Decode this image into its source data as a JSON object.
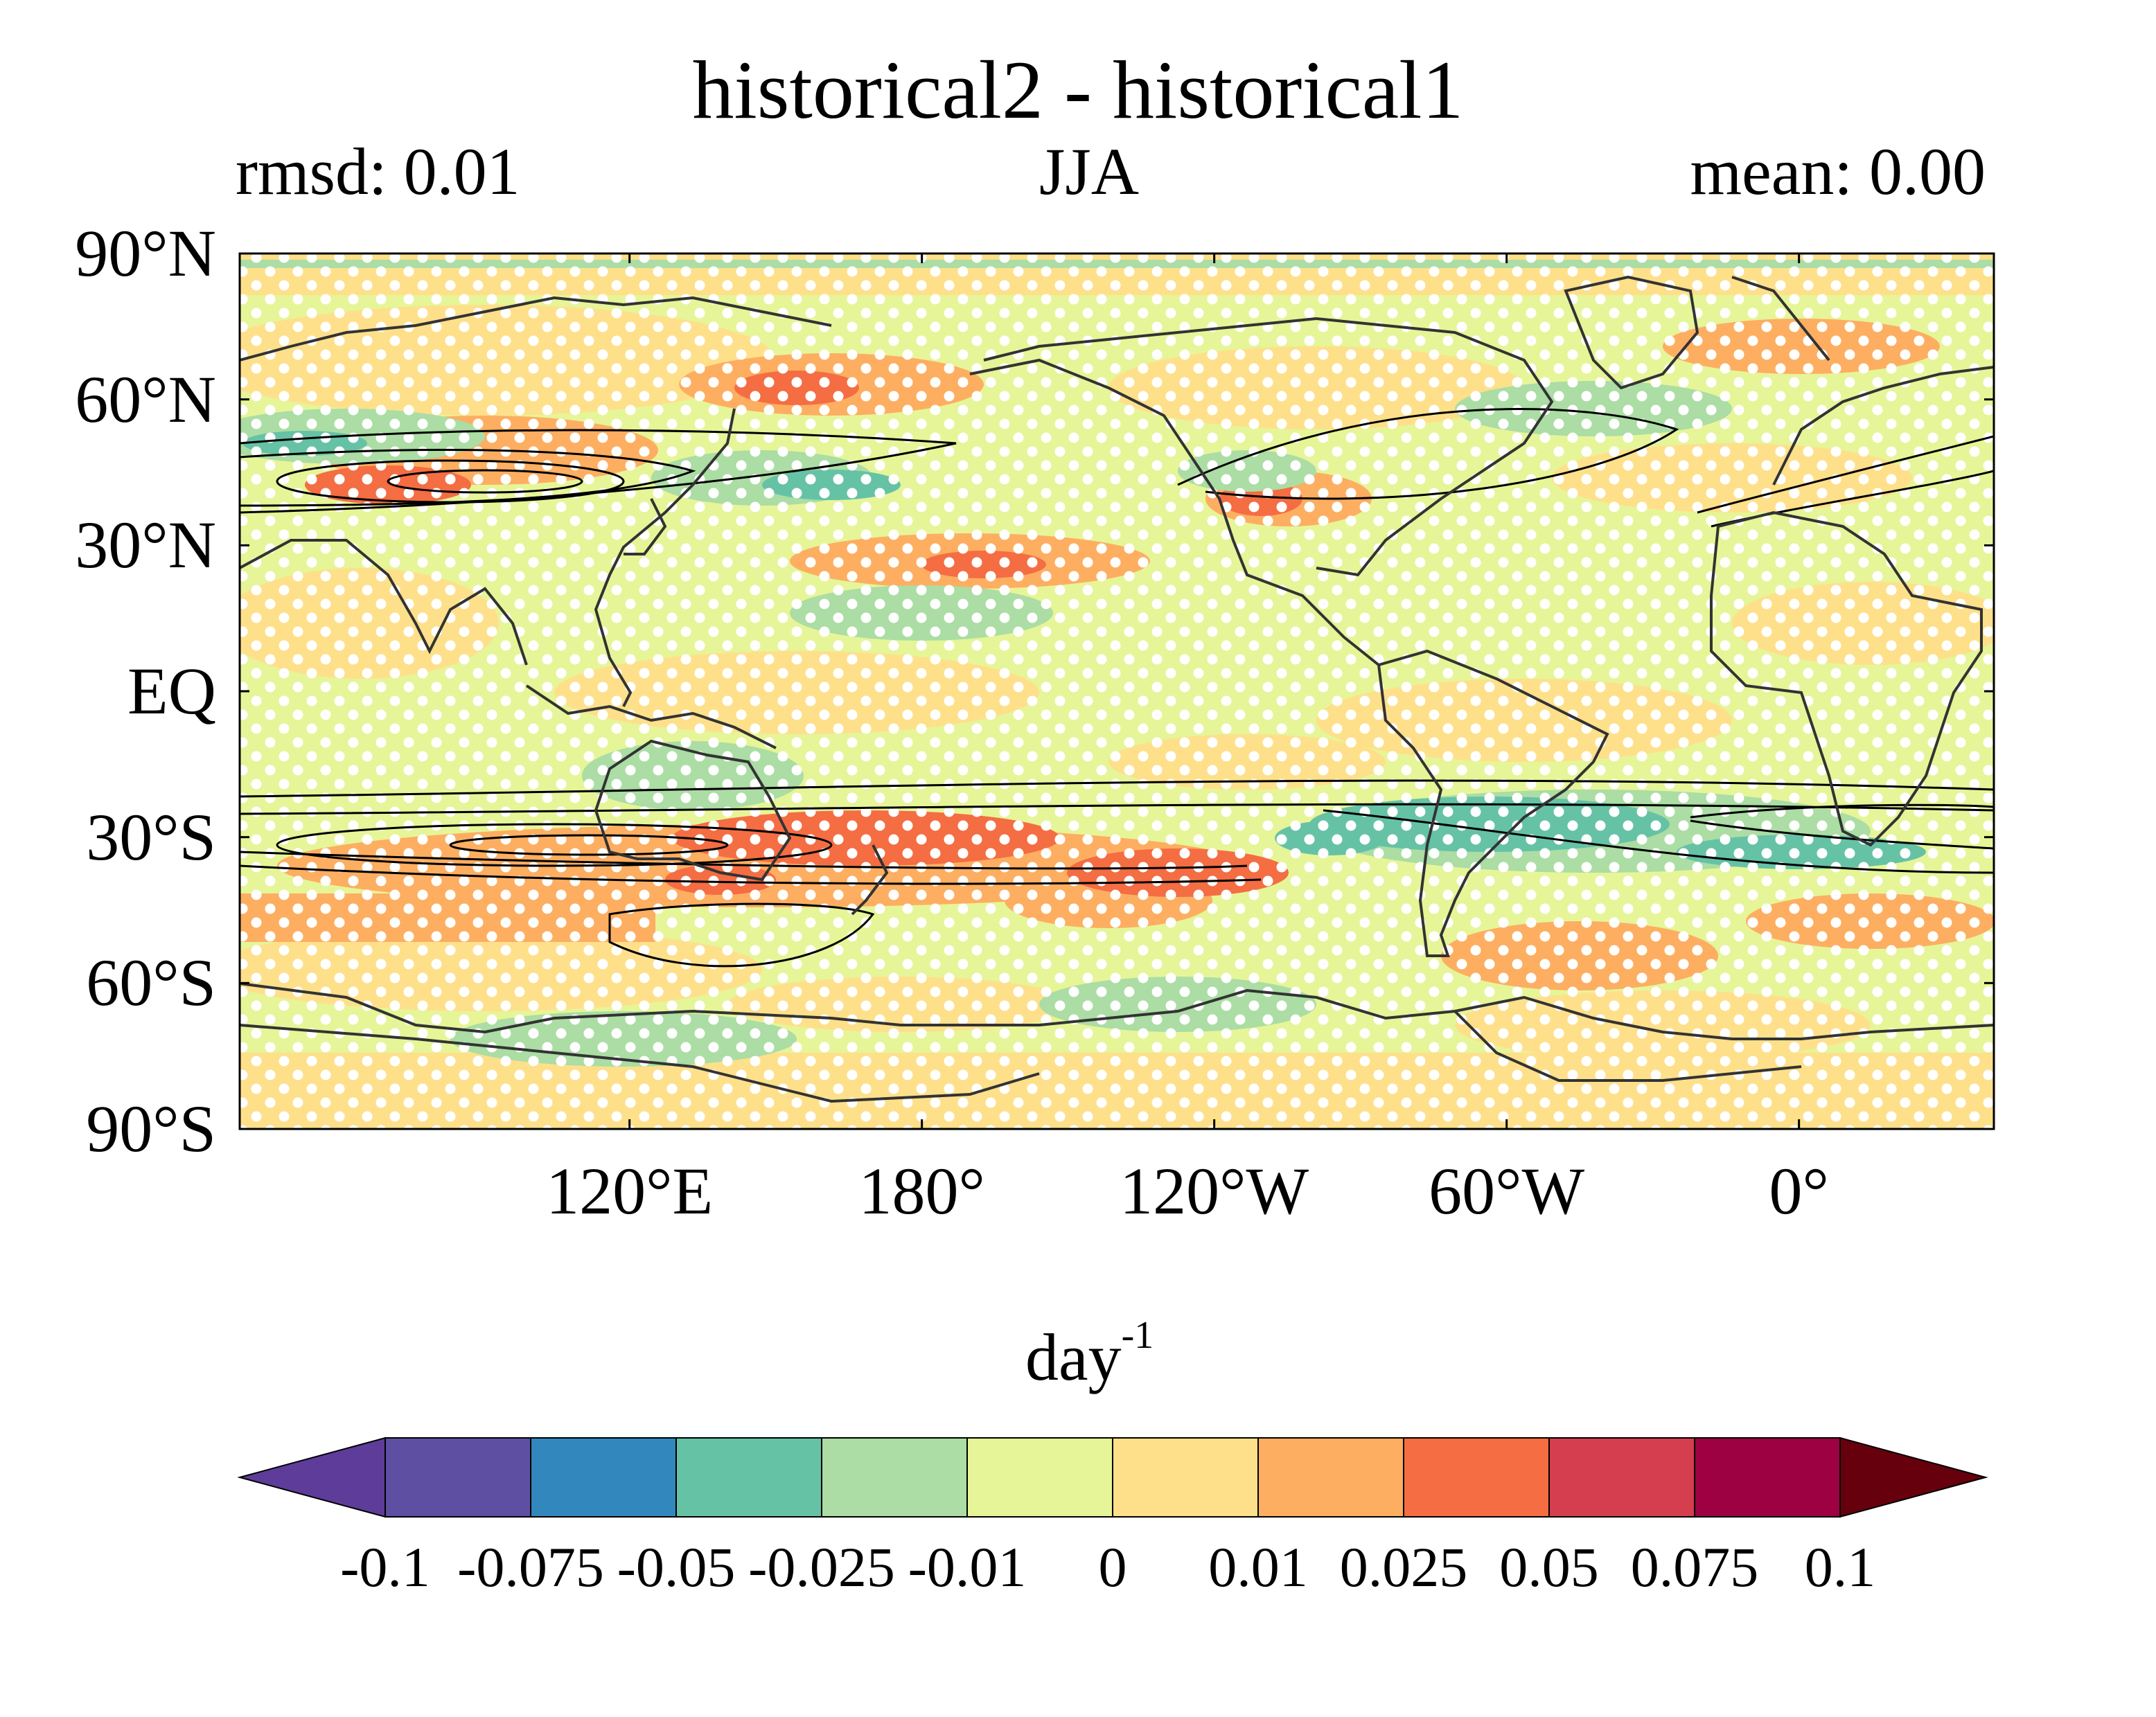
{
  "title": "historical2 - historical1",
  "subtitle_left": "rmsd: 0.01",
  "subtitle_center": "JJA",
  "subtitle_right": "mean: 0.00",
  "y_ticks": [
    {
      "label": "90°N",
      "lat": 90
    },
    {
      "label": "60°N",
      "lat": 60
    },
    {
      "label": "30°N",
      "lat": 30
    },
    {
      "label": "EQ",
      "lat": 0
    },
    {
      "label": "30°S",
      "lat": -30
    },
    {
      "label": "60°S",
      "lat": -60
    },
    {
      "label": "90°S",
      "lat": -90
    }
  ],
  "x_ticks": [
    {
      "label": "120°E",
      "lon": 120
    },
    {
      "label": "180°",
      "lon": 180
    },
    {
      "label": "120°W",
      "lon": 240
    },
    {
      "label": "60°W",
      "lon": 300
    },
    {
      "label": "0°",
      "lon": 360
    }
  ],
  "lon_range": [
    40,
    400
  ],
  "lat_range": [
    -90,
    90
  ],
  "colorbar": {
    "units_base": "day",
    "units_exp": "-1",
    "levels": [
      "-0.1",
      "-0.075",
      "-0.05",
      "-0.025",
      "-0.01",
      "0",
      "0.01",
      "0.025",
      "0.05",
      "0.075",
      "0.1"
    ],
    "colors": [
      "#5e3c99",
      "#5e4fa2",
      "#3288bd",
      "#66c2a5",
      "#abdda4",
      "#e6f598",
      "#fee08b",
      "#fdae61",
      "#f46d43",
      "#d53e4f",
      "#9e0142",
      "#67000d"
    ],
    "extend": "both"
  },
  "colors": {
    "frame": "#000000",
    "coast": "#333333",
    "stipple": "#ffffff",
    "background_field": "#e6f598"
  }
}
